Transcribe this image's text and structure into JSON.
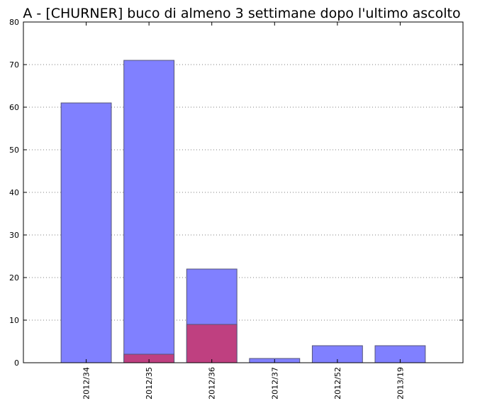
{
  "chart_data": {
    "type": "bar",
    "title": "A - [CHURNER] buco di almeno 3 settimane dopo l'ultimo ascolto",
    "xlabel": "",
    "ylabel": "",
    "categories": [
      "2012/34",
      "2012/35",
      "2012/36",
      "2012/37",
      "2012/52",
      "2013/19"
    ],
    "series": [
      {
        "values": [
          61,
          71,
          22,
          1,
          4,
          4
        ],
        "color": "#8080ff"
      },
      {
        "values": [
          0,
          2,
          9,
          0,
          0,
          0
        ],
        "color": "#bf4080"
      }
    ],
    "ylim": [
      0,
      80
    ],
    "yticks": [
      0,
      10,
      20,
      30,
      40,
      50,
      60,
      70,
      80
    ],
    "grid": "horizontal dotted",
    "bar_edge_color": "#555577"
  }
}
